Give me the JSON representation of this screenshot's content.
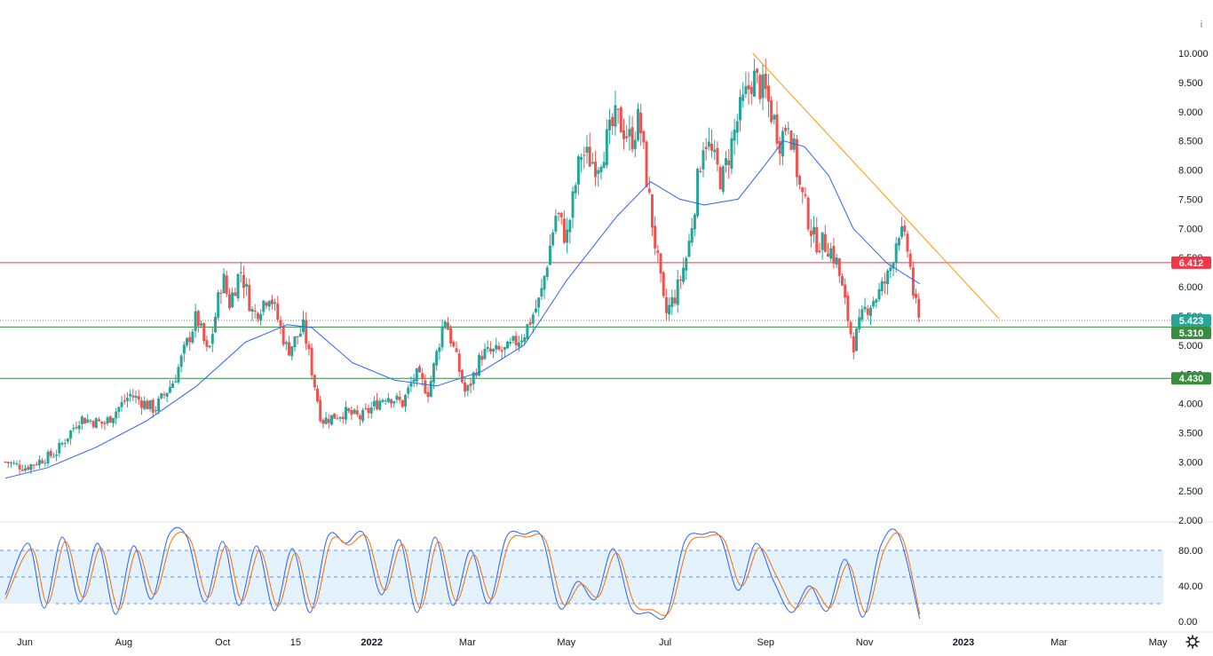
{
  "colors": {
    "up": "#26a69a",
    "down": "#ef5350",
    "ma": "#2962ff",
    "trendline": "#ff9800",
    "resistance": "#f23645",
    "support": "#388e3c",
    "current": "#26a69a",
    "stoch_k": "#2962ff",
    "stoch_d": "#ff6d00",
    "stoch_band": "#e3f2fd",
    "stoch_band_line": "#2962ff"
  },
  "icons": {
    "settings": "gear-icon",
    "info": "info-icon"
  },
  "info_glyph": "i",
  "chart_data": [
    {
      "type": "candlestick",
      "title": "",
      "x_axis": {
        "labels": [
          {
            "text": "Jun",
            "date": "2021-06-01",
            "bold": false
          },
          {
            "text": "Aug",
            "date": "2021-08-01",
            "bold": false
          },
          {
            "text": "Oct",
            "date": "2021-10-01",
            "bold": false
          },
          {
            "text": "15",
            "date": "2021-11-15",
            "bold": false
          },
          {
            "text": "2022",
            "date": "2022-01-01",
            "bold": true
          },
          {
            "text": "Mar",
            "date": "2022-03-01",
            "bold": false
          },
          {
            "text": "May",
            "date": "2022-05-01",
            "bold": false
          },
          {
            "text": "Jul",
            "date": "2022-07-01",
            "bold": false
          },
          {
            "text": "Sep",
            "date": "2022-09-01",
            "bold": false
          },
          {
            "text": "Nov",
            "date": "2022-11-01",
            "bold": false
          },
          {
            "text": "2023",
            "date": "2023-01-01",
            "bold": true
          },
          {
            "text": "Mar",
            "date": "2023-03-01",
            "bold": false
          },
          {
            "text": "May",
            "date": "2023-05-01",
            "bold": false
          }
        ]
      },
      "y_axis": {
        "ticks": [
          "2.000",
          "2.500",
          "3.000",
          "3.500",
          "4.000",
          "4.500",
          "5.000",
          "5.500",
          "6.000",
          "6.500",
          "7.000",
          "7.500",
          "8.000",
          "8.500",
          "9.000",
          "9.500",
          "10.000"
        ],
        "ylim": [
          2.0,
          10.0
        ]
      },
      "price_path": [
        [
          "2021-05-20",
          3.0
        ],
        [
          "2021-06-01",
          2.9
        ],
        [
          "2021-06-20",
          3.15
        ],
        [
          "2021-07-05",
          3.75
        ],
        [
          "2021-07-20",
          3.65
        ],
        [
          "2021-08-05",
          4.15
        ],
        [
          "2021-08-20",
          3.9
        ],
        [
          "2021-09-01",
          4.4
        ],
        [
          "2021-09-15",
          5.5
        ],
        [
          "2021-09-22",
          4.8
        ],
        [
          "2021-10-01",
          6.2
        ],
        [
          "2021-10-05",
          5.7
        ],
        [
          "2021-10-12",
          6.3
        ],
        [
          "2021-10-20",
          5.5
        ],
        [
          "2021-10-30",
          5.9
        ],
        [
          "2021-11-10",
          4.9
        ],
        [
          "2021-11-20",
          5.3
        ],
        [
          "2021-12-01",
          3.7
        ],
        [
          "2021-12-15",
          3.85
        ],
        [
          "2021-12-25",
          3.75
        ],
        [
          "2022-01-10",
          4.15
        ],
        [
          "2022-01-20",
          4.0
        ],
        [
          "2022-01-28",
          4.5
        ],
        [
          "2022-02-05",
          4.2
        ],
        [
          "2022-02-15",
          5.5
        ],
        [
          "2022-02-28",
          4.15
        ],
        [
          "2022-03-10",
          4.85
        ],
        [
          "2022-03-25",
          4.9
        ],
        [
          "2022-04-05",
          5.2
        ],
        [
          "2022-04-15",
          5.8
        ],
        [
          "2022-04-25",
          7.3
        ],
        [
          "2022-05-01",
          6.8
        ],
        [
          "2022-05-10",
          8.3
        ],
        [
          "2022-05-20",
          8.1
        ],
        [
          "2022-06-01",
          8.9
        ],
        [
          "2022-06-10",
          8.5
        ],
        [
          "2022-06-15",
          8.9
        ],
        [
          "2022-06-22",
          7.3
        ],
        [
          "2022-07-01",
          5.5
        ],
        [
          "2022-07-08",
          5.9
        ],
        [
          "2022-07-15",
          6.6
        ],
        [
          "2022-07-25",
          8.6
        ],
        [
          "2022-08-05",
          7.8
        ],
        [
          "2022-08-15",
          8.9
        ],
        [
          "2022-08-24",
          9.6
        ],
        [
          "2022-09-01",
          9.3
        ],
        [
          "2022-09-10",
          8.5
        ],
        [
          "2022-09-15",
          8.9
        ],
        [
          "2022-09-22",
          7.7
        ],
        [
          "2022-10-01",
          6.8
        ],
        [
          "2022-10-10",
          6.7
        ],
        [
          "2022-10-15",
          6.4
        ],
        [
          "2022-10-25",
          5.0
        ],
        [
          "2022-11-01",
          5.6
        ],
        [
          "2022-11-10",
          5.9
        ],
        [
          "2022-11-16",
          6.2
        ],
        [
          "2022-11-22",
          7.0
        ],
        [
          "2022-11-28",
          6.6
        ],
        [
          "2022-12-01",
          5.9
        ],
        [
          "2022-12-05",
          5.31
        ]
      ],
      "moving_average": [
        [
          "2021-05-20",
          2.72
        ],
        [
          "2021-06-15",
          2.9
        ],
        [
          "2021-07-15",
          3.25
        ],
        [
          "2021-08-15",
          3.7
        ],
        [
          "2021-09-15",
          4.3
        ],
        [
          "2021-10-15",
          5.05
        ],
        [
          "2021-11-10",
          5.35
        ],
        [
          "2021-11-25",
          5.3
        ],
        [
          "2021-12-20",
          4.7
        ],
        [
          "2022-01-15",
          4.4
        ],
        [
          "2022-02-10",
          4.3
        ],
        [
          "2022-03-10",
          4.55
        ],
        [
          "2022-04-05",
          5.0
        ],
        [
          "2022-05-01",
          6.1
        ],
        [
          "2022-06-01",
          7.2
        ],
        [
          "2022-06-22",
          7.8
        ],
        [
          "2022-07-10",
          7.5
        ],
        [
          "2022-07-25",
          7.4
        ],
        [
          "2022-08-15",
          7.5
        ],
        [
          "2022-09-01",
          8.1
        ],
        [
          "2022-09-12",
          8.5
        ],
        [
          "2022-09-25",
          8.4
        ],
        [
          "2022-10-10",
          7.9
        ],
        [
          "2022-10-25",
          7.0
        ],
        [
          "2022-11-15",
          6.4
        ],
        [
          "2022-12-05",
          6.05
        ]
      ],
      "trendline": {
        "start": [
          "2022-08-24",
          10.0
        ],
        "end": [
          "2023-01-23",
          5.45
        ]
      },
      "horizontal_lines": [
        {
          "price": 6.412,
          "label": "6.412",
          "kind": "resistance",
          "style": "solid"
        },
        {
          "price": 5.423,
          "label": "5.423",
          "kind": "current",
          "style": "dotted"
        },
        {
          "price": 5.31,
          "label": "5.310",
          "kind": "support",
          "style": "solid"
        },
        {
          "price": 4.43,
          "label": "4.430",
          "kind": "support",
          "style": "solid"
        }
      ],
      "last_price": 5.31
    },
    {
      "type": "line",
      "indicator": "stochastic",
      "y_axis": {
        "ticks": [
          "0.00",
          "40.00",
          "80.00"
        ],
        "ylim": [
          0,
          100
        ]
      },
      "band": {
        "upper": 80,
        "mid": 50,
        "lower": 20
      },
      "series": [
        {
          "key": "k",
          "values": [
            [
              "2021-05-20",
              30
            ],
            [
              "2021-06-03",
              88
            ],
            [
              "2021-06-13",
              15
            ],
            [
              "2021-06-24",
              95
            ],
            [
              "2021-07-05",
              22
            ],
            [
              "2021-07-16",
              88
            ],
            [
              "2021-07-27",
              8
            ],
            [
              "2021-08-07",
              85
            ],
            [
              "2021-08-18",
              25
            ],
            [
              "2021-08-29",
              98
            ],
            [
              "2021-09-09",
              95
            ],
            [
              "2021-09-20",
              22
            ],
            [
              "2021-10-01",
              90
            ],
            [
              "2021-10-11",
              18
            ],
            [
              "2021-10-22",
              85
            ],
            [
              "2021-11-02",
              12
            ],
            [
              "2021-11-13",
              82
            ],
            [
              "2021-11-24",
              10
            ],
            [
              "2021-12-05",
              96
            ],
            [
              "2021-12-16",
              88
            ],
            [
              "2021-12-27",
              99
            ],
            [
              "2022-01-07",
              30
            ],
            [
              "2022-01-18",
              92
            ],
            [
              "2022-01-29",
              10
            ],
            [
              "2022-02-09",
              95
            ],
            [
              "2022-02-20",
              18
            ],
            [
              "2022-03-03",
              80
            ],
            [
              "2022-03-14",
              20
            ],
            [
              "2022-03-25",
              95
            ],
            [
              "2022-04-05",
              98
            ],
            [
              "2022-04-16",
              95
            ],
            [
              "2022-04-27",
              15
            ],
            [
              "2022-05-08",
              45
            ],
            [
              "2022-05-19",
              25
            ],
            [
              "2022-05-30",
              82
            ],
            [
              "2022-06-10",
              15
            ],
            [
              "2022-06-21",
              10
            ],
            [
              "2022-07-02",
              8
            ],
            [
              "2022-07-13",
              90
            ],
            [
              "2022-07-24",
              98
            ],
            [
              "2022-08-04",
              95
            ],
            [
              "2022-08-15",
              35
            ],
            [
              "2022-08-26",
              88
            ],
            [
              "2022-09-06",
              45
            ],
            [
              "2022-09-17",
              10
            ],
            [
              "2022-09-28",
              40
            ],
            [
              "2022-10-09",
              12
            ],
            [
              "2022-10-20",
              70
            ],
            [
              "2022-10-31",
              5
            ],
            [
              "2022-11-11",
              85
            ],
            [
              "2022-11-22",
              98
            ],
            [
              "2022-12-05",
              3
            ]
          ]
        },
        {
          "key": "d",
          "values": [
            [
              "2021-05-20",
              25
            ],
            [
              "2021-06-05",
              82
            ],
            [
              "2021-06-15",
              20
            ],
            [
              "2021-06-26",
              90
            ],
            [
              "2021-07-07",
              27
            ],
            [
              "2021-07-18",
              83
            ],
            [
              "2021-07-29",
              13
            ],
            [
              "2021-08-09",
              80
            ],
            [
              "2021-08-20",
              30
            ],
            [
              "2021-08-31",
              93
            ],
            [
              "2021-09-11",
              92
            ],
            [
              "2021-09-22",
              27
            ],
            [
              "2021-10-03",
              85
            ],
            [
              "2021-10-13",
              23
            ],
            [
              "2021-10-24",
              80
            ],
            [
              "2021-11-04",
              17
            ],
            [
              "2021-11-15",
              77
            ],
            [
              "2021-11-26",
              15
            ],
            [
              "2021-12-07",
              91
            ],
            [
              "2021-12-18",
              86
            ],
            [
              "2021-12-29",
              95
            ],
            [
              "2022-01-09",
              35
            ],
            [
              "2022-01-20",
              87
            ],
            [
              "2022-01-31",
              15
            ],
            [
              "2022-02-11",
              90
            ],
            [
              "2022-02-22",
              23
            ],
            [
              "2022-03-05",
              75
            ],
            [
              "2022-03-16",
              25
            ],
            [
              "2022-03-27",
              90
            ],
            [
              "2022-04-07",
              95
            ],
            [
              "2022-04-18",
              92
            ],
            [
              "2022-04-29",
              20
            ],
            [
              "2022-05-10",
              42
            ],
            [
              "2022-05-21",
              28
            ],
            [
              "2022-06-01",
              77
            ],
            [
              "2022-06-12",
              20
            ],
            [
              "2022-06-23",
              13
            ],
            [
              "2022-07-04",
              12
            ],
            [
              "2022-07-15",
              85
            ],
            [
              "2022-07-26",
              95
            ],
            [
              "2022-08-06",
              93
            ],
            [
              "2022-08-17",
              40
            ],
            [
              "2022-08-28",
              83
            ],
            [
              "2022-09-08",
              50
            ],
            [
              "2022-09-19",
              15
            ],
            [
              "2022-09-30",
              38
            ],
            [
              "2022-10-11",
              16
            ],
            [
              "2022-10-22",
              65
            ],
            [
              "2022-11-02",
              10
            ],
            [
              "2022-11-13",
              80
            ],
            [
              "2022-11-24",
              95
            ],
            [
              "2022-12-05",
              8
            ]
          ]
        }
      ]
    }
  ]
}
